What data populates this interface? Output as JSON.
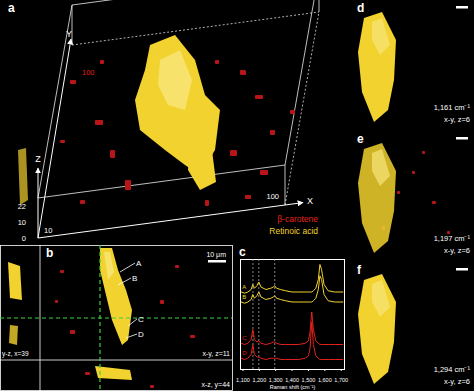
{
  "figure": {
    "panel_a": {
      "label": "a",
      "axes": {
        "x": {
          "name": "X",
          "ticks": [
            "10",
            "100"
          ]
        },
        "y": {
          "name": "Y",
          "ticks": [
            "100"
          ]
        },
        "z": {
          "name": "Z",
          "ticks": [
            "0",
            "10",
            "22"
          ]
        }
      },
      "legend": [
        {
          "label": "β-carotene",
          "color": "#e3211c"
        },
        {
          "label": "Retinoic acid",
          "color": "#f2d22e"
        }
      ]
    },
    "panel_b": {
      "label": "b",
      "scale_bar": "10 μm",
      "markers": [
        "A",
        "B",
        "C",
        "D"
      ],
      "views": {
        "yz": "y-z, x=39",
        "xy": "x-y, z=11",
        "xz": "x-z, y=44"
      }
    },
    "panel_c": {
      "label": "c"
    },
    "maps": [
      {
        "label": "d",
        "wavenumber": "1,161 cm⁻¹",
        "plane": "x-y, z=6"
      },
      {
        "label": "e",
        "wavenumber": "1,197 cm⁻¹",
        "plane": "x-y, z=6"
      },
      {
        "label": "f",
        "wavenumber": "1,294 cm⁻¹",
        "plane": "x-y, z=6"
      }
    ]
  },
  "chart_data": {
    "type": "line",
    "x_label": "Raman shift (cm⁻¹)",
    "tick_labels": "x",
    "xlim": [
      1085,
      1720
    ],
    "ylim": [
      20,
      108
    ],
    "xticks": [
      {
        "value": 1100,
        "label": "1,100"
      },
      {
        "value": 1200,
        "label": "1,200"
      },
      {
        "value": 1300,
        "label": "1,300"
      },
      {
        "value": 1400,
        "label": "1,400"
      },
      {
        "value": 1500,
        "label": "1,500"
      },
      {
        "value": 1600,
        "label": "1,600"
      },
      {
        "value": 1700,
        "label": "1,700"
      }
    ],
    "vlines": [
      1161,
      1197,
      1294
    ],
    "x": [
      1090,
      1110,
      1130,
      1150,
      1160,
      1170,
      1185,
      1197,
      1210,
      1240,
      1270,
      1285,
      1294,
      1305,
      1330,
      1360,
      1400,
      1440,
      1480,
      1500,
      1510,
      1520,
      1530,
      1545,
      1560,
      1570,
      1580,
      1595,
      1620,
      1660,
      1710
    ],
    "series": [
      {
        "name": "A",
        "color": "#f2d22e",
        "values": [
          82,
          81,
          82,
          84,
          88,
          85,
          87,
          90,
          86,
          84,
          85,
          86,
          87,
          85,
          84,
          83,
          82,
          82,
          82,
          82,
          82,
          82,
          83,
          85,
          92,
          104,
          100,
          88,
          83,
          82,
          82
        ]
      },
      {
        "name": "B",
        "color": "#f2d22e",
        "values": [
          74,
          73,
          74,
          76,
          80,
          77,
          79,
          82,
          78,
          76,
          77,
          78,
          79,
          77,
          76,
          75,
          74,
          74,
          74,
          74,
          74,
          74,
          75,
          77,
          84,
          95,
          92,
          80,
          75,
          74,
          74
        ]
      },
      {
        "name": "C",
        "color": "#e3211c",
        "values": [
          41,
          40,
          41,
          44,
          52,
          44,
          42,
          43,
          41,
          40,
          41,
          42,
          42,
          41,
          40,
          40,
          40,
          40,
          41,
          43,
          50,
          66,
          52,
          43,
          41,
          40,
          40,
          40,
          40,
          40,
          40
        ]
      },
      {
        "name": "D",
        "color": "#e3211c",
        "values": [
          29,
          28,
          29,
          32,
          40,
          32,
          30,
          30,
          29,
          28,
          29,
          29,
          29,
          29,
          28,
          28,
          28,
          28,
          29,
          31,
          37,
          58,
          40,
          31,
          29,
          28,
          28,
          28,
          28,
          28,
          28
        ]
      }
    ]
  }
}
